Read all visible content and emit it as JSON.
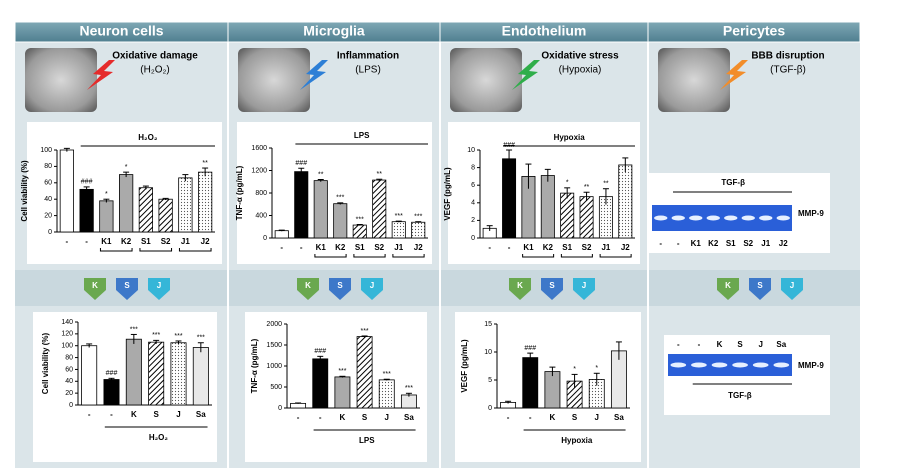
{
  "columns": [
    {
      "title": "Neuron cells",
      "stress": "Oxidative damage",
      "agent": "(H₂O₂)"
    },
    {
      "title": "Microglia",
      "stress": "Inflammation",
      "agent": "(LPS)"
    },
    {
      "title": "Endothelium",
      "stress": "Oxidative stress",
      "agent": "(Hypoxia)"
    },
    {
      "title": "Pericytes",
      "stress": "BBB disruption",
      "agent": "(TGF-β)"
    }
  ],
  "icons": [
    "K",
    "S",
    "J"
  ],
  "gels": [
    {
      "lanes": [
        "-",
        "-",
        "K1",
        "K2",
        "S1",
        "S2",
        "J1",
        "J2"
      ],
      "band_label": "MMP-9",
      "treatment": "TGF-β"
    },
    {
      "lanes": [
        "-",
        "-",
        "K",
        "S",
        "J",
        "Sa"
      ],
      "band_label": "MMP-9",
      "treatment": "TGF-β"
    }
  ],
  "chart_data": [
    {
      "type": "bar",
      "ylabel": "Cell viability (%)",
      "annotation": "H₂O₂",
      "annotation_position": "top",
      "categories": [
        "-",
        "-",
        "K1",
        "K2",
        "S1",
        "S2",
        "J1",
        "J2"
      ],
      "values": [
        100,
        52,
        38,
        70,
        54,
        40,
        66,
        73
      ],
      "errors": [
        2,
        3,
        2,
        3,
        2,
        1,
        4,
        5
      ],
      "significance": [
        null,
        "###",
        "*",
        "*",
        null,
        null,
        null,
        "**"
      ],
      "patterns": [
        "white",
        "black",
        "gray",
        "gray",
        "hatch",
        "hatch",
        "dots",
        "dots"
      ],
      "ylim": [
        0,
        100
      ],
      "yticks": [
        0,
        20,
        40,
        60,
        80,
        100
      ]
    },
    {
      "type": "bar",
      "ylabel": "TNF-α (pg/mL)",
      "annotation": "LPS",
      "annotation_position": "top",
      "categories": [
        "-",
        "-",
        "K1",
        "K2",
        "S1",
        "S2",
        "J1",
        "J2"
      ],
      "values": [
        130,
        1180,
        1020,
        610,
        230,
        1030,
        290,
        280
      ],
      "errors": [
        10,
        60,
        20,
        15,
        10,
        15,
        10,
        10
      ],
      "significance": [
        null,
        "###",
        "**",
        "***",
        "***",
        "**",
        "***",
        "***"
      ],
      "patterns": [
        "white",
        "black",
        "gray",
        "gray",
        "hatch",
        "hatch",
        "dots",
        "dots"
      ],
      "ylim": [
        0,
        1600
      ],
      "yticks": [
        0,
        400,
        800,
        1200,
        1600
      ]
    },
    {
      "type": "bar",
      "ylabel": "VEGF (pg/mL)",
      "annotation": "Hypoxia",
      "annotation_position": "top",
      "categories": [
        "-",
        "-",
        "K1",
        "K2",
        "S1",
        "S2",
        "J1",
        "J2"
      ],
      "values": [
        1.1,
        9,
        7,
        7.1,
        5.1,
        4.7,
        4.7,
        8.3
      ],
      "errors": [
        0.3,
        1,
        1.4,
        0.7,
        0.6,
        0.5,
        0.9,
        0.8
      ],
      "significance": [
        null,
        "###",
        null,
        null,
        "*",
        "**",
        "**",
        null
      ],
      "patterns": [
        "white",
        "black",
        "gray",
        "gray",
        "hatch",
        "hatch",
        "dots",
        "dots"
      ],
      "ylim": [
        0,
        10
      ],
      "yticks": [
        0,
        2,
        4,
        6,
        8,
        10
      ]
    },
    {
      "type": "bar",
      "ylabel": "Cell viability (%)",
      "annotation": "H₂O₂",
      "annotation_position": "bottom",
      "categories": [
        "-",
        "-",
        "K",
        "S",
        "J",
        "Sa"
      ],
      "values": [
        100,
        43,
        111,
        106,
        105,
        97
      ],
      "errors": [
        3,
        2,
        8,
        3,
        3,
        8
      ],
      "significance": [
        null,
        "###",
        "***",
        "***",
        "***",
        "***"
      ],
      "patterns": [
        "white",
        "black",
        "gray",
        "hatch",
        "dots",
        "lightgray"
      ],
      "ylim": [
        0,
        140
      ],
      "yticks": [
        0,
        20,
        40,
        60,
        80,
        100,
        120,
        140
      ]
    },
    {
      "type": "bar",
      "ylabel": "TNF-α (pg/mL)",
      "annotation": "LPS",
      "annotation_position": "bottom",
      "categories": [
        "-",
        "-",
        "K",
        "S",
        "J",
        "Sa"
      ],
      "values": [
        110,
        1170,
        740,
        1700,
        670,
        310
      ],
      "errors": [
        10,
        60,
        15,
        15,
        15,
        40
      ],
      "significance": [
        null,
        "###",
        "***",
        "***",
        "***",
        "***"
      ],
      "patterns": [
        "white",
        "black",
        "gray",
        "hatch",
        "dots",
        "lightgray"
      ],
      "ylim": [
        0,
        2000
      ],
      "yticks": [
        0,
        500,
        1000,
        1500,
        2000
      ]
    },
    {
      "type": "bar",
      "ylabel": "VEGF (pg/mL)",
      "annotation": "Hypoxia",
      "annotation_position": "bottom",
      "categories": [
        "-",
        "-",
        "K",
        "S",
        "J",
        "Sa"
      ],
      "values": [
        1,
        9,
        6.5,
        4.8,
        5.1,
        10.2
      ],
      "errors": [
        0.2,
        0.8,
        0.8,
        1.2,
        1.1,
        1.6
      ],
      "significance": [
        null,
        "###",
        null,
        "*",
        "*",
        null
      ],
      "patterns": [
        "white",
        "black",
        "gray",
        "hatch",
        "dots",
        "lightgray"
      ],
      "ylim": [
        0,
        15
      ],
      "yticks": [
        0,
        5,
        10,
        15
      ]
    }
  ]
}
